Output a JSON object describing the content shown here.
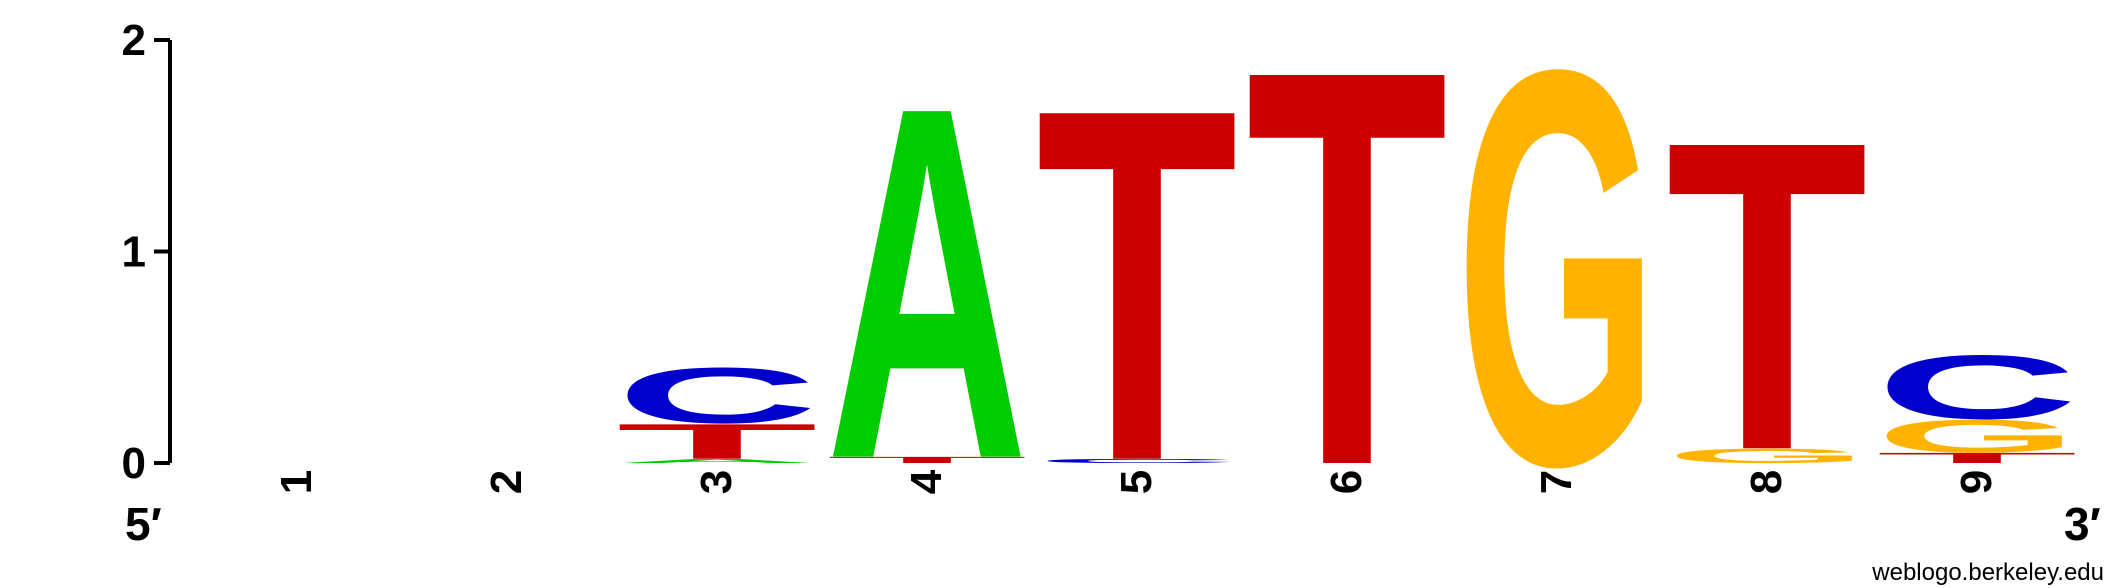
{
  "chart_data": {
    "type": "sequence-logo",
    "ylim": [
      0,
      2
    ],
    "yticks": [
      "0",
      "1",
      "2"
    ],
    "positions": [
      "1",
      "2",
      "3",
      "4",
      "5",
      "6",
      "7",
      "8",
      "9"
    ],
    "end_labels": {
      "left": "5′",
      "right": "3′"
    },
    "colors": {
      "A": "#00cc00",
      "C": "#0000cc",
      "G": "#ffb300",
      "T": "#cc0000"
    },
    "stacks": [
      [],
      [],
      [
        {
          "letter": "A",
          "height": 0.02
        },
        {
          "letter": "T",
          "height": 0.17
        },
        {
          "letter": "C",
          "height": 0.27
        }
      ],
      [
        {
          "letter": "T",
          "height": 0.03
        },
        {
          "letter": "A",
          "height": 1.71
        }
      ],
      [
        {
          "letter": "C",
          "height": 0.02
        },
        {
          "letter": "T",
          "height": 1.71
        }
      ],
      [
        {
          "letter": "T",
          "height": 1.92
        }
      ],
      [
        {
          "letter": "G",
          "height": 1.92
        }
      ],
      [
        {
          "letter": "G",
          "height": 0.07
        },
        {
          "letter": "T",
          "height": 1.5
        }
      ],
      [
        {
          "letter": "T",
          "height": 0.05
        },
        {
          "letter": "G",
          "height": 0.16
        },
        {
          "letter": "C",
          "height": 0.31
        }
      ]
    ]
  },
  "credit": "weblogo.berkeley.edu"
}
